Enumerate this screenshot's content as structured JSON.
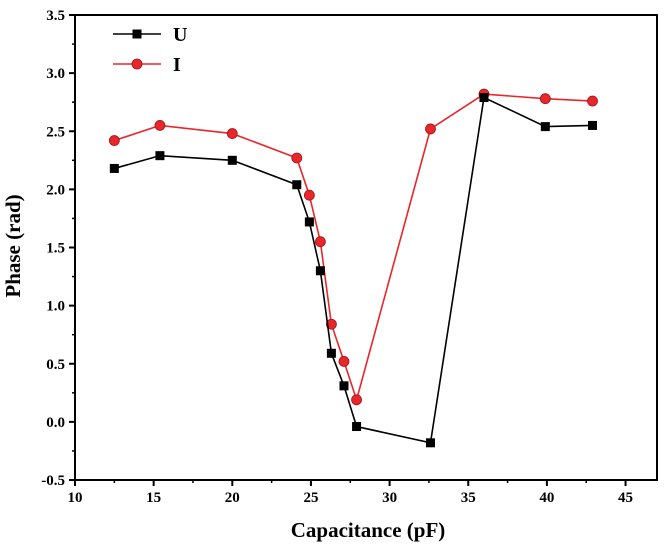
{
  "chart_data": {
    "type": "line",
    "title": "",
    "xlabel": "Capacitance (pF)",
    "ylabel": "Phase (rad)",
    "xlim": [
      10,
      47
    ],
    "ylim": [
      -0.5,
      3.5
    ],
    "xticks": [
      10,
      15,
      20,
      25,
      30,
      35,
      40,
      45
    ],
    "yticks": [
      -0.5,
      0.0,
      0.5,
      1.0,
      1.5,
      2.0,
      2.5,
      3.0,
      3.5
    ],
    "xtick_labels": [
      "10",
      "15",
      "20",
      "25",
      "30",
      "35",
      "40",
      "45"
    ],
    "ytick_labels": [
      "-0.5",
      "0.0",
      "0.5",
      "1.0",
      "1.5",
      "2.0",
      "2.5",
      "3.0",
      "3.5"
    ],
    "grid": false,
    "legend_position": "top-left",
    "series": [
      {
        "name": "U",
        "color": "#000000",
        "marker": "square",
        "x": [
          12.5,
          15.4,
          20.0,
          24.1,
          24.9,
          25.6,
          26.3,
          27.1,
          27.9,
          32.6,
          36.0,
          39.9,
          42.9
        ],
        "y": [
          2.18,
          2.29,
          2.25,
          2.04,
          1.72,
          1.3,
          0.59,
          0.31,
          -0.04,
          -0.18,
          2.79,
          2.54,
          2.55
        ]
      },
      {
        "name": "I",
        "color": "#e8262b",
        "marker": "circle",
        "x": [
          12.5,
          15.4,
          20.0,
          24.1,
          24.9,
          25.6,
          26.3,
          27.1,
          27.9,
          32.6,
          36.0,
          39.9,
          42.9
        ],
        "y": [
          2.42,
          2.55,
          2.48,
          2.27,
          1.95,
          1.55,
          0.84,
          0.52,
          0.19,
          2.52,
          2.82,
          2.78,
          2.76
        ]
      }
    ]
  }
}
